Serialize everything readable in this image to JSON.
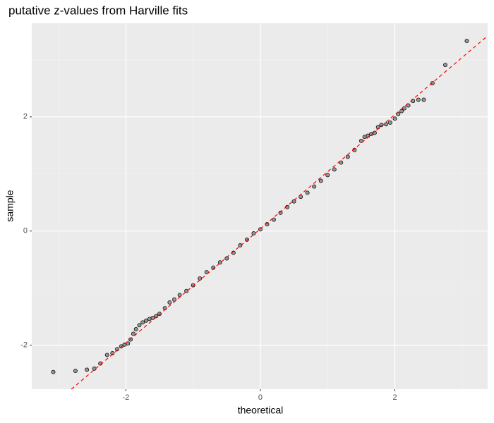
{
  "chart_data": {
    "type": "qq",
    "title": "putative z-values from Harville fits",
    "x_label": "theoretical",
    "y_label": "sample",
    "x": [
      -3.08,
      -2.75,
      -2.58,
      -2.47,
      -2.38,
      -2.28,
      -2.2,
      -2.13,
      -2.07,
      -2.02,
      -1.97,
      -1.93,
      -1.89,
      -1.85,
      -1.8,
      -1.75,
      -1.7,
      -1.65,
      -1.6,
      -1.55,
      -1.5,
      -1.42,
      -1.35,
      -1.28,
      -1.2,
      -1.1,
      -1.0,
      -0.9,
      -0.8,
      -0.7,
      -0.6,
      -0.5,
      -0.4,
      -0.3,
      -0.2,
      -0.1,
      0,
      0.1,
      0.2,
      0.3,
      0.4,
      0.5,
      0.6,
      0.7,
      0.8,
      0.9,
      1.0,
      1.1,
      1.2,
      1.3,
      1.4,
      1.5,
      1.55,
      1.6,
      1.65,
      1.7,
      1.75,
      1.8,
      1.87,
      1.93,
      2.0,
      2.05,
      2.1,
      2.14,
      2.2,
      2.27,
      2.35,
      2.43,
      2.56,
      2.75,
      3.07
    ],
    "values": [
      -2.47,
      -2.45,
      -2.43,
      -2.41,
      -2.32,
      -2.17,
      -2.14,
      -2.07,
      -2.02,
      -1.99,
      -1.97,
      -1.9,
      -1.8,
      -1.72,
      -1.65,
      -1.6,
      -1.57,
      -1.54,
      -1.52,
      -1.49,
      -1.45,
      -1.35,
      -1.25,
      -1.2,
      -1.12,
      -1.05,
      -0.95,
      -0.83,
      -0.72,
      -0.64,
      -0.55,
      -0.48,
      -0.38,
      -0.25,
      -0.15,
      -0.04,
      0.03,
      0.12,
      0.2,
      0.32,
      0.42,
      0.52,
      0.6,
      0.67,
      0.78,
      0.88,
      0.98,
      1.08,
      1.2,
      1.3,
      1.42,
      1.58,
      1.65,
      1.67,
      1.7,
      1.72,
      1.82,
      1.86,
      1.87,
      1.9,
      1.97,
      2.05,
      2.1,
      2.15,
      2.2,
      2.28,
      2.3,
      2.3,
      2.59,
      2.91,
      3.33
    ],
    "color": "#808080",
    "reference_line": {
      "slope": 1,
      "intercept": 0.04,
      "color": "#ff0000"
    },
    "xlim": [
      -3.4,
      3.38
    ],
    "ylim": [
      -2.77,
      3.64
    ],
    "xticks": [
      -2,
      0,
      2
    ],
    "yticks": [
      -2,
      0,
      2
    ],
    "xminor": [
      -3,
      -1,
      1,
      3
    ],
    "yminor": [
      -1,
      1,
      3
    ],
    "grid": true
  }
}
